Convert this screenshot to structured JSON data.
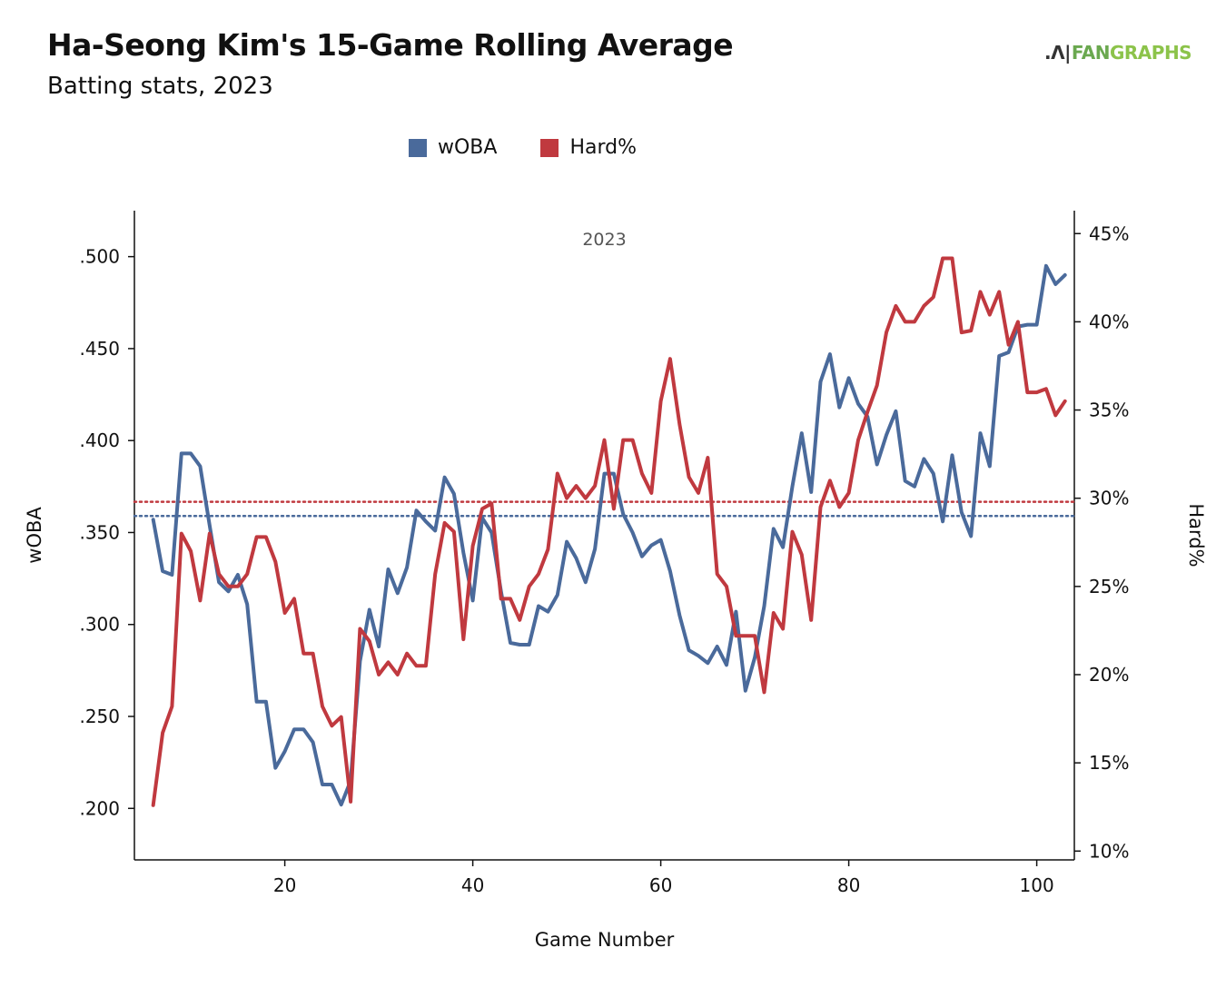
{
  "header": {
    "title": "Ha-Seong Kim's 15-Game Rolling Average",
    "subtitle": "Batting stats, 2023",
    "logo_mark": ".Ʌ|",
    "logo_fan": "FAN",
    "logo_graphs": "GRAPHS"
  },
  "legend": {
    "items": [
      {
        "label": "wOBA",
        "color": "#4a6a9b"
      },
      {
        "label": "Hard%",
        "color": "#c0393f"
      }
    ]
  },
  "chart_data": {
    "type": "line",
    "facet_label": "2023",
    "xlabel": "Game Number",
    "ylabel_left": "wOBA",
    "ylabel_right": "Hard%",
    "xlim": [
      4,
      104
    ],
    "ylim_left": [
      0.172,
      0.525
    ],
    "ylim_right": [
      0.095,
      0.463
    ],
    "x_ticks": [
      20,
      40,
      60,
      80,
      100
    ],
    "x_tick_labels": [
      "20",
      "40",
      "60",
      "80",
      "100"
    ],
    "y_left_ticks": [
      0.2,
      0.25,
      0.3,
      0.35,
      0.4,
      0.45,
      0.5
    ],
    "y_left_tick_labels": [
      ".200",
      ".250",
      ".300",
      ".350",
      ".400",
      ".450",
      ".500"
    ],
    "y_right_ticks": [
      0.1,
      0.15,
      0.2,
      0.25,
      0.3,
      0.35,
      0.4,
      0.45
    ],
    "y_right_tick_labels": [
      "10%",
      "15%",
      "20%",
      "25%",
      "30%",
      "35%",
      "40%",
      "45%"
    ],
    "reference_lines": [
      {
        "series": "wOBA",
        "value": 0.359,
        "color": "#4a6a9b"
      },
      {
        "series": "Hard%",
        "value": 0.298,
        "color": "#c0393f"
      }
    ],
    "series": [
      {
        "name": "wOBA",
        "axis": "left",
        "color": "#4a6a9b",
        "x": [
          6,
          7,
          8,
          9,
          10,
          11,
          12,
          13,
          14,
          15,
          16,
          17,
          18,
          19,
          20,
          21,
          22,
          23,
          24,
          25,
          26,
          27,
          28,
          29,
          30,
          31,
          32,
          33,
          34,
          35,
          36,
          37,
          38,
          39,
          40,
          41,
          42,
          43,
          44,
          45,
          46,
          47,
          48,
          49,
          50,
          51,
          52,
          53,
          54,
          55,
          56,
          57,
          58,
          59,
          60,
          61,
          62,
          63,
          64,
          65,
          66,
          67,
          68,
          69,
          70,
          71,
          72,
          73,
          74,
          75,
          76,
          77,
          78,
          79,
          80,
          81,
          82,
          83,
          84,
          85,
          86,
          87,
          88,
          89,
          90,
          91,
          92,
          93,
          94,
          95,
          96,
          97,
          98,
          99,
          100,
          101,
          102,
          103
        ],
        "y": [
          0.357,
          0.329,
          0.327,
          0.393,
          0.393,
          0.386,
          0.354,
          0.323,
          0.318,
          0.327,
          0.311,
          0.258,
          0.258,
          0.222,
          0.231,
          0.243,
          0.243,
          0.236,
          0.213,
          0.213,
          0.202,
          0.215,
          0.28,
          0.308,
          0.288,
          0.33,
          0.317,
          0.331,
          0.362,
          0.356,
          0.351,
          0.38,
          0.371,
          0.339,
          0.313,
          0.358,
          0.35,
          0.318,
          0.29,
          0.289,
          0.289,
          0.31,
          0.307,
          0.316,
          0.345,
          0.336,
          0.323,
          0.341,
          0.382,
          0.382,
          0.36,
          0.35,
          0.337,
          0.343,
          0.346,
          0.329,
          0.305,
          0.286,
          0.283,
          0.279,
          0.288,
          0.278,
          0.307,
          0.264,
          0.282,
          0.31,
          0.352,
          0.342,
          0.375,
          0.404,
          0.372,
          0.432,
          0.447,
          0.418,
          0.434,
          0.42,
          0.413,
          0.387,
          0.403,
          0.416,
          0.378,
          0.375,
          0.39,
          0.382,
          0.356,
          0.392,
          0.361,
          0.348,
          0.404,
          0.386,
          0.446,
          0.448,
          0.462,
          0.463,
          0.463,
          0.495,
          0.485,
          0.49
        ]
      },
      {
        "name": "Hard%",
        "axis": "right",
        "color": "#c0393f",
        "x": [
          6,
          7,
          8,
          9,
          10,
          11,
          12,
          13,
          14,
          15,
          16,
          17,
          18,
          19,
          20,
          21,
          22,
          23,
          24,
          25,
          26,
          27,
          28,
          29,
          30,
          31,
          32,
          33,
          34,
          35,
          36,
          37,
          38,
          39,
          40,
          41,
          42,
          43,
          44,
          45,
          46,
          47,
          48,
          49,
          50,
          51,
          52,
          53,
          54,
          55,
          56,
          57,
          58,
          59,
          60,
          61,
          62,
          63,
          64,
          65,
          66,
          67,
          68,
          69,
          70,
          71,
          72,
          73,
          74,
          75,
          76,
          77,
          78,
          79,
          80,
          81,
          82,
          83,
          84,
          85,
          86,
          87,
          88,
          89,
          90,
          91,
          92,
          93,
          94,
          95,
          96,
          97,
          98,
          99,
          100,
          101,
          102,
          103
        ],
        "y": [
          0.126,
          0.167,
          0.182,
          0.28,
          0.27,
          0.242,
          0.28,
          0.257,
          0.25,
          0.25,
          0.257,
          0.278,
          0.278,
          0.264,
          0.235,
          0.243,
          0.212,
          0.212,
          0.182,
          0.171,
          0.176,
          0.128,
          0.226,
          0.219,
          0.2,
          0.207,
          0.2,
          0.212,
          0.205,
          0.205,
          0.257,
          0.286,
          0.281,
          0.22,
          0.273,
          0.294,
          0.297,
          0.243,
          0.243,
          0.231,
          0.25,
          0.257,
          0.271,
          0.314,
          0.3,
          0.307,
          0.3,
          0.307,
          0.333,
          0.294,
          0.333,
          0.333,
          0.314,
          0.303,
          0.355,
          0.379,
          0.342,
          0.312,
          0.303,
          0.323,
          0.257,
          0.25,
          0.222,
          0.222,
          0.222,
          0.19,
          0.235,
          0.226,
          0.281,
          0.268,
          0.231,
          0.295,
          0.31,
          0.295,
          0.303,
          0.333,
          0.349,
          0.364,
          0.394,
          0.409,
          0.4,
          0.4,
          0.409,
          0.414,
          0.436,
          0.436,
          0.394,
          0.395,
          0.417,
          0.404,
          0.417,
          0.387,
          0.4,
          0.36,
          0.36,
          0.362,
          0.347,
          0.355
        ]
      }
    ]
  }
}
